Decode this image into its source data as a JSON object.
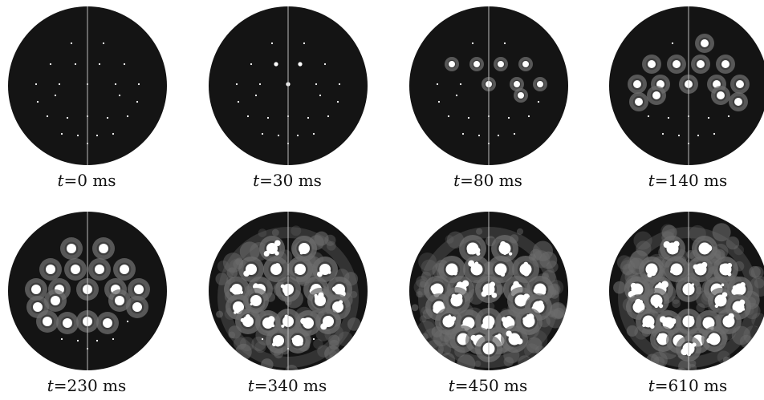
{
  "panels": [
    {
      "time_label": "t",
      "time_value": "=0 ms",
      "frame_ms": 0
    },
    {
      "time_label": "t",
      "time_value": "=30 ms",
      "frame_ms": 30
    },
    {
      "time_label": "t",
      "time_value": "=80 ms",
      "frame_ms": 80
    },
    {
      "time_label": "t",
      "time_value": "=140 ms",
      "frame_ms": 140
    },
    {
      "time_label": "t",
      "time_value": "=230 ms",
      "frame_ms": 230
    },
    {
      "time_label": "t",
      "time_value": "=340 ms",
      "frame_ms": 340
    },
    {
      "time_label": "t",
      "time_value": "=450 ms",
      "frame_ms": 450
    },
    {
      "time_label": "t",
      "time_value": "=610 ms",
      "frame_ms": 610
    }
  ],
  "colors": {
    "disk": "#141414",
    "halo": "#6e6e6e",
    "burn": "#ffffff",
    "divider": "#bdbdbd",
    "background": "#ffffff"
  }
}
